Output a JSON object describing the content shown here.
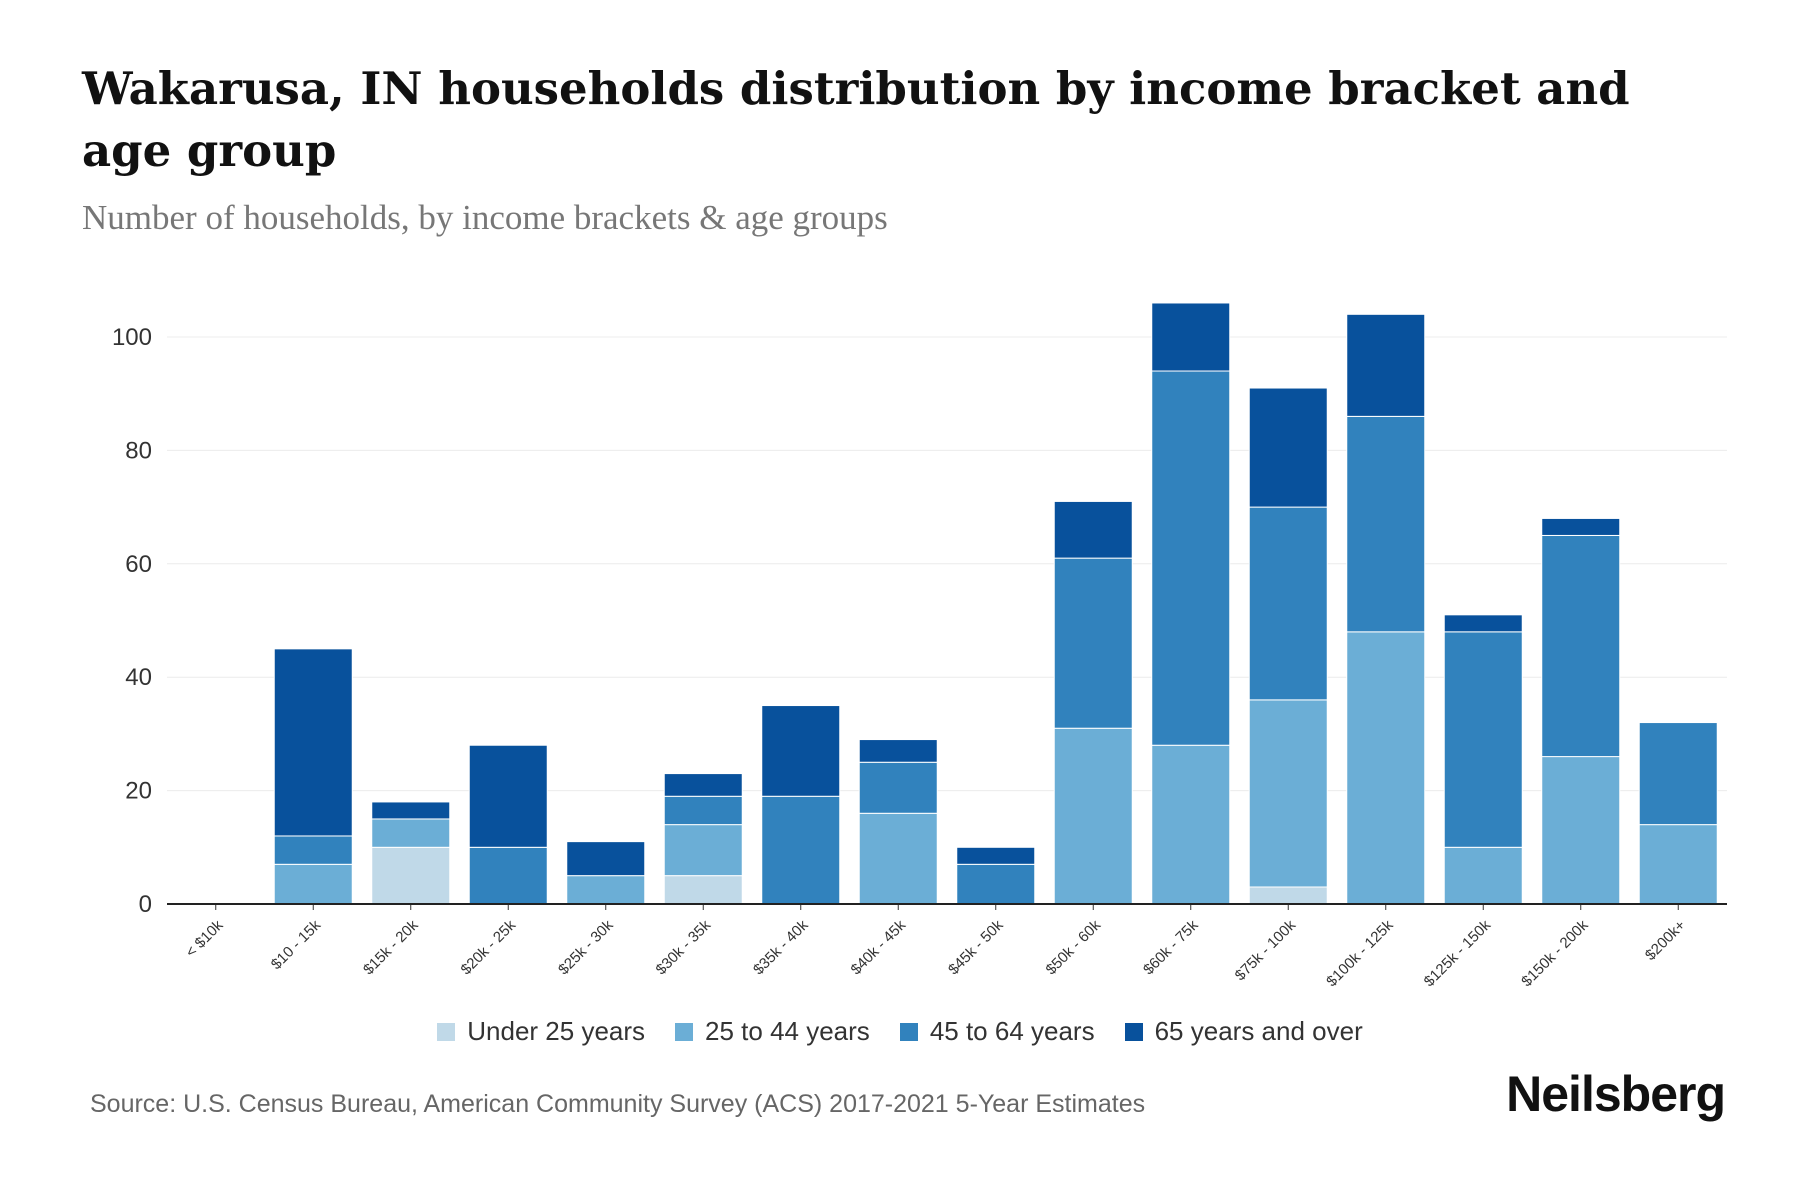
{
  "title": "Wakarusa, IN households distribution by income bracket and age group",
  "subtitle": "Number of households, by income brackets & age groups",
  "source": "Source: U.S. Census Bureau, American Community Survey (ACS) 2017-2021 5-Year Estimates",
  "logo": "Neilsberg",
  "colors": [
    "#c0d9e8",
    "#6baed6",
    "#3182bd",
    "#08519c"
  ],
  "chart_data": {
    "type": "bar",
    "stacked": true,
    "title": "Wakarusa, IN households distribution by income bracket and age group",
    "xlabel": "",
    "ylabel": "",
    "ylim": [
      0,
      110
    ],
    "yticks": [
      0,
      20,
      40,
      60,
      80,
      100
    ],
    "grid": true,
    "legend_position": "bottom",
    "categories": [
      "< $10k",
      "$10 - 15k",
      "$15k - 20k",
      "$20k - 25k",
      "$25k - 30k",
      "$30k - 35k",
      "$35k - 40k",
      "$40k - 45k",
      "$45k - 50k",
      "$50k - 60k",
      "$60k - 75k",
      "$75k - 100k",
      "$100k - 125k",
      "$125k - 150k",
      "$150k - 200k",
      "$200k+"
    ],
    "series": [
      {
        "name": "Under 25 years",
        "values": [
          0,
          0,
          10,
          0,
          0,
          5,
          0,
          0,
          0,
          0,
          0,
          3,
          0,
          0,
          0,
          0
        ]
      },
      {
        "name": "25 to 44 years",
        "values": [
          0,
          7,
          5,
          0,
          5,
          9,
          0,
          16,
          0,
          31,
          28,
          33,
          48,
          10,
          26,
          14
        ]
      },
      {
        "name": "45 to 64 years",
        "values": [
          0,
          5,
          0,
          10,
          0,
          5,
          19,
          9,
          7,
          30,
          66,
          34,
          38,
          38,
          39,
          18
        ]
      },
      {
        "name": "65 years and over",
        "values": [
          0,
          33,
          3,
          18,
          6,
          4,
          16,
          4,
          3,
          10,
          12,
          21,
          18,
          3,
          3,
          0
        ]
      }
    ]
  }
}
